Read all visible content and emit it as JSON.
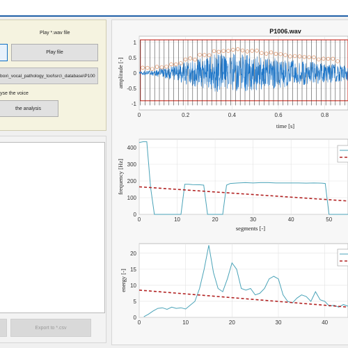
{
  "play_panel": {
    "title": "Play *.wav file",
    "play_button": "Play file",
    "file_path": "box\\_vocal_pathology_tool\\src\\_database\\P100",
    "analyse_label": "yse the voice",
    "analysis_button": "the analysis"
  },
  "export_button": "Export to *.csv",
  "colors": {
    "signal": "#1f77c9",
    "frame": "#d0392f",
    "series": "#4aa3b8",
    "trend": "#b22222",
    "marker": "#e08b5a"
  },
  "chart_data": [
    {
      "type": "line",
      "title": "P1006.wav",
      "xlabel": "time [s]",
      "ylabel": "amplitude [-]",
      "xlim": [
        0,
        0.9
      ],
      "ylim": [
        -1.2,
        1.2
      ],
      "xticks": [
        "0",
        "0.2",
        "0.4",
        "0.6",
        "0.8"
      ],
      "yticks": [
        "1",
        "0.5",
        "0",
        "-0.5",
        "-1"
      ],
      "series": [
        {
          "values": [
            0.05,
            0.1,
            0.2,
            0.35,
            0.5,
            0.6,
            0.65,
            0.6,
            0.55,
            0.5,
            0.45,
            0.4,
            0.35,
            0.3,
            0.25
          ]
        }
      ]
    },
    {
      "type": "line",
      "xlabel": "segments [-]",
      "ylabel": "frequency [Hz]",
      "xlim": [
        0,
        55
      ],
      "ylim": [
        0,
        450
      ],
      "xticks": [
        "0",
        "10",
        "20",
        "30",
        "40",
        "50"
      ],
      "yticks": [
        "400",
        "300",
        "200",
        "100",
        "0"
      ],
      "x": [
        0,
        1,
        2,
        3,
        4,
        11,
        12,
        13,
        14,
        16,
        17,
        18,
        19,
        20,
        21,
        22,
        23,
        24,
        26,
        28,
        30,
        32,
        34,
        36,
        38,
        40,
        42,
        44,
        46,
        48,
        49,
        50,
        51,
        52,
        55
      ],
      "values": [
        430,
        435,
        435,
        160,
        0,
        0,
        180,
        180,
        178,
        177,
        175,
        0,
        0,
        0,
        0,
        0,
        175,
        185,
        188,
        190,
        188,
        190,
        190,
        188,
        188,
        188,
        188,
        187,
        188,
        187,
        185,
        0,
        0,
        0,
        0
      ],
      "trend": [
        [
          0,
          165
        ],
        [
          55,
          80
        ]
      ]
    },
    {
      "type": "line",
      "xlabel": "",
      "ylabel": "energy [-]",
      "xlim": [
        0,
        45
      ],
      "ylim": [
        0,
        23
      ],
      "xticks": [
        "0",
        "10",
        "20",
        "30",
        "40"
      ],
      "yticks": [
        "20",
        "15",
        "10",
        "5",
        "0"
      ],
      "x": [
        1,
        2,
        3,
        4,
        5,
        6,
        7,
        8,
        9,
        10,
        11,
        12,
        13,
        14,
        15,
        16,
        17,
        18,
        19,
        20,
        21,
        22,
        23,
        24,
        25,
        26,
        27,
        28,
        29,
        30,
        31,
        32,
        33,
        34,
        35,
        36,
        37,
        38,
        39,
        40,
        41,
        42,
        43,
        44,
        45
      ],
      "values": [
        0.2,
        1.0,
        2.0,
        2.8,
        3.0,
        2.5,
        3.2,
        2.8,
        3.0,
        2.6,
        3.8,
        5.0,
        9.0,
        15.0,
        22.5,
        14.0,
        9.0,
        8.0,
        12.0,
        17.0,
        15.0,
        9.0,
        8.5,
        9.0,
        7.0,
        7.5,
        9.0,
        12.0,
        12.8,
        12.0,
        7.0,
        5.0,
        4.5,
        6.0,
        7.0,
        6.5,
        5.0,
        8.0,
        5.5,
        5.0,
        3.5,
        3.8,
        3.2,
        4.0,
        3.5
      ],
      "trend": [
        [
          0,
          8.5
        ],
        [
          45,
          3.2
        ]
      ]
    }
  ]
}
